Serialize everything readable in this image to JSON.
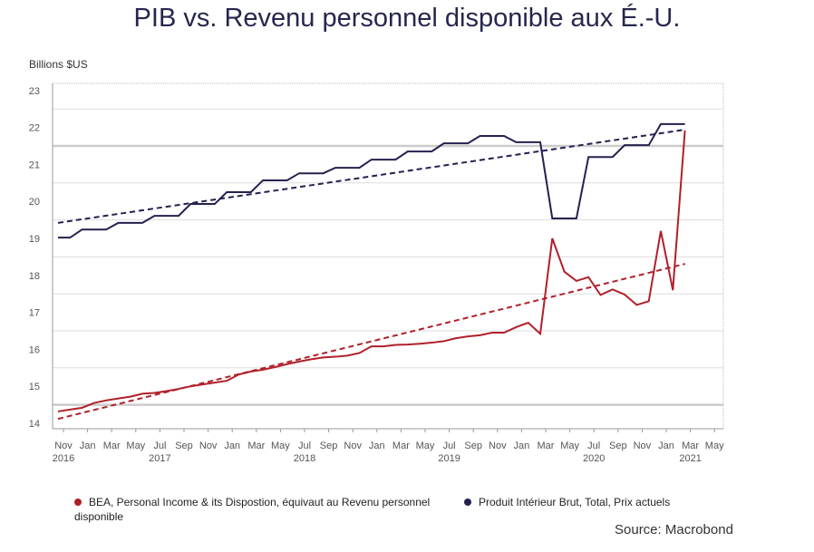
{
  "chart_data": {
    "type": "line",
    "title": "PIB vs. Revenu personnel disponible aux É.-U.",
    "ylabel": "Billions $US",
    "ylim": [
      14,
      23
    ],
    "yticks": [
      "23",
      "22",
      "21",
      "20",
      "19",
      "18",
      "17",
      "16",
      "15",
      "14"
    ],
    "xstart": "2016-11",
    "xend": "2021-05",
    "xticks": [
      [
        "Nov",
        "2016"
      ],
      [
        "Jan",
        ""
      ],
      [
        "Mar",
        ""
      ],
      [
        "May",
        ""
      ],
      [
        "Jul",
        "2017"
      ],
      [
        "Sep",
        ""
      ],
      [
        "Nov",
        ""
      ],
      [
        "Jan",
        ""
      ],
      [
        "Mar",
        ""
      ],
      [
        "May",
        ""
      ],
      [
        "Jul",
        "2018"
      ],
      [
        "Sep",
        ""
      ],
      [
        "Nov",
        ""
      ],
      [
        "Jan",
        ""
      ],
      [
        "Mar",
        ""
      ],
      [
        "May",
        ""
      ],
      [
        "Jul",
        "2019"
      ],
      [
        "Sep",
        ""
      ],
      [
        "Nov",
        ""
      ],
      [
        "Jan",
        ""
      ],
      [
        "Mar",
        ""
      ],
      [
        "May",
        ""
      ],
      [
        "Jul",
        "2020"
      ],
      [
        "Sep",
        ""
      ],
      [
        "Nov",
        ""
      ],
      [
        "Jan",
        ""
      ],
      [
        "Mar",
        "2021"
      ],
      [
        "May",
        ""
      ]
    ],
    "grid": true,
    "legend_placement": "bottom",
    "series": [
      {
        "name": "BEA, Personal Income & its Dispostion, équivaut au Revenu personnel disponible",
        "color": "#b0202a",
        "x_start": "2016-11",
        "values": [
          14.32,
          14.37,
          14.42,
          14.55,
          14.62,
          14.67,
          14.72,
          14.8,
          14.82,
          14.87,
          14.93,
          15.0,
          15.05,
          15.1,
          15.15,
          15.32,
          15.4,
          15.45,
          15.52,
          15.6,
          15.67,
          15.73,
          15.78,
          15.8,
          15.83,
          15.9,
          16.08,
          16.08,
          16.12,
          16.13,
          16.15,
          16.18,
          16.22,
          16.3,
          16.35,
          16.38,
          16.45,
          16.45,
          16.6,
          16.72,
          16.42,
          19.0,
          18.1,
          17.85,
          17.95,
          17.47,
          17.62,
          17.48,
          17.2,
          17.3,
          19.2,
          17.6,
          21.92
        ],
        "trend": [
          14.12,
          18.31
        ]
      },
      {
        "name": "Produit Intérieur Brut, Total, Prix actuels",
        "color": "#23214f",
        "x_start": "2016-11",
        "values": [
          19.02,
          19.02,
          19.24,
          19.24,
          19.24,
          19.42,
          19.42,
          19.42,
          19.61,
          19.61,
          19.61,
          19.93,
          19.93,
          19.93,
          20.25,
          20.25,
          20.25,
          20.57,
          20.57,
          20.57,
          20.76,
          20.76,
          20.76,
          20.91,
          20.91,
          20.91,
          21.13,
          21.13,
          21.13,
          21.35,
          21.35,
          21.35,
          21.57,
          21.57,
          21.57,
          21.77,
          21.77,
          21.77,
          21.6,
          21.6,
          21.6,
          19.54,
          19.54,
          19.54,
          21.2,
          21.2,
          21.2,
          21.52,
          21.52,
          21.52,
          22.09,
          22.09,
          22.09
        ],
        "trend": [
          19.42,
          21.94
        ]
      }
    ]
  },
  "source": "Source: Macrobond"
}
